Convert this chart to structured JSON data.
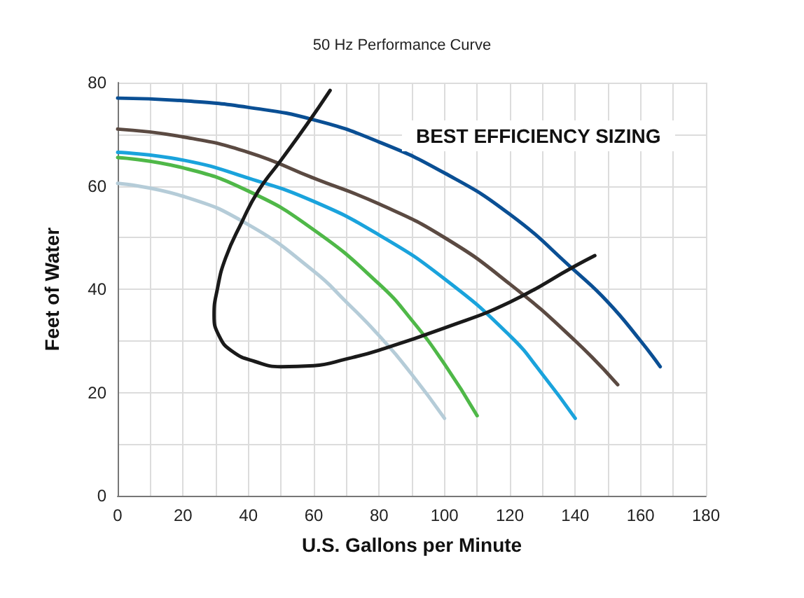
{
  "chart_data": {
    "type": "line",
    "title": "50 Hz Performance Curve",
    "xlabel": "U.S. Gallons per Minute",
    "ylabel": "Feet of Water",
    "xlim": [
      0,
      180
    ],
    "ylim": [
      0,
      80
    ],
    "xticks": [
      0,
      {
        "value": 10,
        "label": null
      },
      20,
      {
        "value": 30,
        "label": null
      },
      40,
      {
        "value": 50,
        "label": null
      },
      60,
      {
        "value": 70,
        "label": null
      },
      80,
      {
        "value": 90,
        "label": null
      },
      100,
      {
        "value": 110,
        "label": null
      },
      120,
      {
        "value": 130,
        "label": null
      },
      140,
      {
        "value": 150,
        "label": null
      },
      160,
      {
        "value": 170,
        "label": null
      },
      180
    ],
    "yticks": [
      0,
      {
        "value": 10,
        "label": null
      },
      20,
      {
        "value": 30,
        "label": null
      },
      40,
      {
        "value": 50,
        "label": null
      },
      60,
      {
        "value": 70,
        "label": null
      },
      80
    ],
    "grid": true,
    "marker": "none",
    "line_style": "solid",
    "annotations": [
      "BEST EFFICIENCY SIZING"
    ],
    "series": [
      {
        "color": "#0a4f94",
        "x": [
          0,
          20,
          40,
          60,
          80,
          100,
          120,
          140,
          150,
          160,
          166
        ],
        "values": [
          77,
          76.5,
          75.2,
          72.8,
          68.5,
          62.5,
          54.5,
          43.5,
          37.5,
          30,
          25
        ]
      },
      {
        "color": "#5b4a42",
        "x": [
          0,
          20,
          40,
          60,
          80,
          100,
          120,
          140,
          153
        ],
        "values": [
          71,
          69.5,
          66.5,
          61.5,
          56.5,
          50,
          41,
          30,
          21.5
        ]
      },
      {
        "color": "#1aa3dc",
        "x": [
          0,
          20,
          40,
          60,
          80,
          100,
          120,
          130,
          140
        ],
        "values": [
          66.5,
          65,
          61.5,
          57,
          50.5,
          42,
          31,
          23.5,
          15
        ]
      },
      {
        "color": "#4fb848",
        "x": [
          0,
          20,
          40,
          60,
          80,
          90,
          100,
          110
        ],
        "values": [
          65.5,
          63.5,
          59,
          51.5,
          41,
          34,
          25.5,
          15.5
        ]
      },
      {
        "color": "#b5ccd8",
        "x": [
          0,
          20,
          40,
          60,
          70,
          80,
          90,
          100
        ],
        "values": [
          60.5,
          58,
          52.5,
          43.5,
          37.5,
          31,
          23.5,
          15
        ]
      },
      {
        "color": "#1a1a1a",
        "x": [
          65,
          58,
          50,
          43,
          38,
          33,
          30.5,
          29.5,
          31,
          35,
          42,
          50,
          60,
          70,
          80,
          100,
          120,
          140,
          146
        ],
        "values": [
          78.5,
          72,
          65,
          59,
          53,
          46,
          40,
          35,
          31,
          28,
          26,
          25,
          25.2,
          26.5,
          28.2,
          32.5,
          37.5,
          44.5,
          46.5
        ]
      }
    ]
  }
}
